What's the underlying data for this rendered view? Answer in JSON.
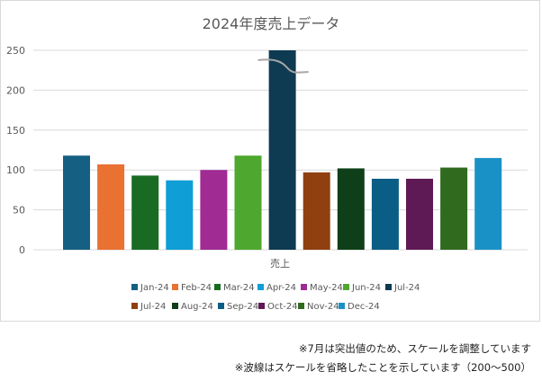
{
  "chart_data": {
    "type": "bar",
    "title": "2024年度売上データ",
    "xlabel": "売上",
    "ylabel": "",
    "ylim": [
      0,
      250
    ],
    "yticks": [
      0,
      50,
      100,
      150,
      200,
      250
    ],
    "grid": true,
    "legend_position": "bottom",
    "axis_break": {
      "category": "Jul-24"
    },
    "categories": [
      "売上"
    ],
    "series": [
      {
        "name": "Jan-24",
        "value": 118,
        "color": "#156082"
      },
      {
        "name": "Feb-24",
        "value": 107,
        "color": "#E97132"
      },
      {
        "name": "Mar-24",
        "value": 93,
        "color": "#196B24"
      },
      {
        "name": "Apr-24",
        "value": 87,
        "color": "#0F9ED5"
      },
      {
        "name": "May-24",
        "value": 100,
        "color": "#A02B93"
      },
      {
        "name": "Jun-24",
        "value": 118,
        "color": "#4EA72E"
      },
      {
        "name": "Jul-24",
        "value": 500,
        "color": "#0E3A52"
      },
      {
        "name": "Jul-24",
        "value": 97,
        "color": "#8F3F10"
      },
      {
        "name": "Aug-24",
        "value": 102,
        "color": "#0E3F18"
      },
      {
        "name": "Sep-24",
        "value": 89,
        "color": "#0A5D84"
      },
      {
        "name": "Oct-24",
        "value": 89,
        "color": "#5E1A54"
      },
      {
        "name": "Nov-24",
        "value": 103,
        "color": "#306A1F"
      },
      {
        "name": "Dec-24",
        "value": 115,
        "color": "#1A91C6"
      }
    ]
  },
  "notes": {
    "line1": "※7月は突出値のため、スケールを調整しています",
    "line2": "※波線はスケールを省略したことを示しています（200～500）"
  }
}
